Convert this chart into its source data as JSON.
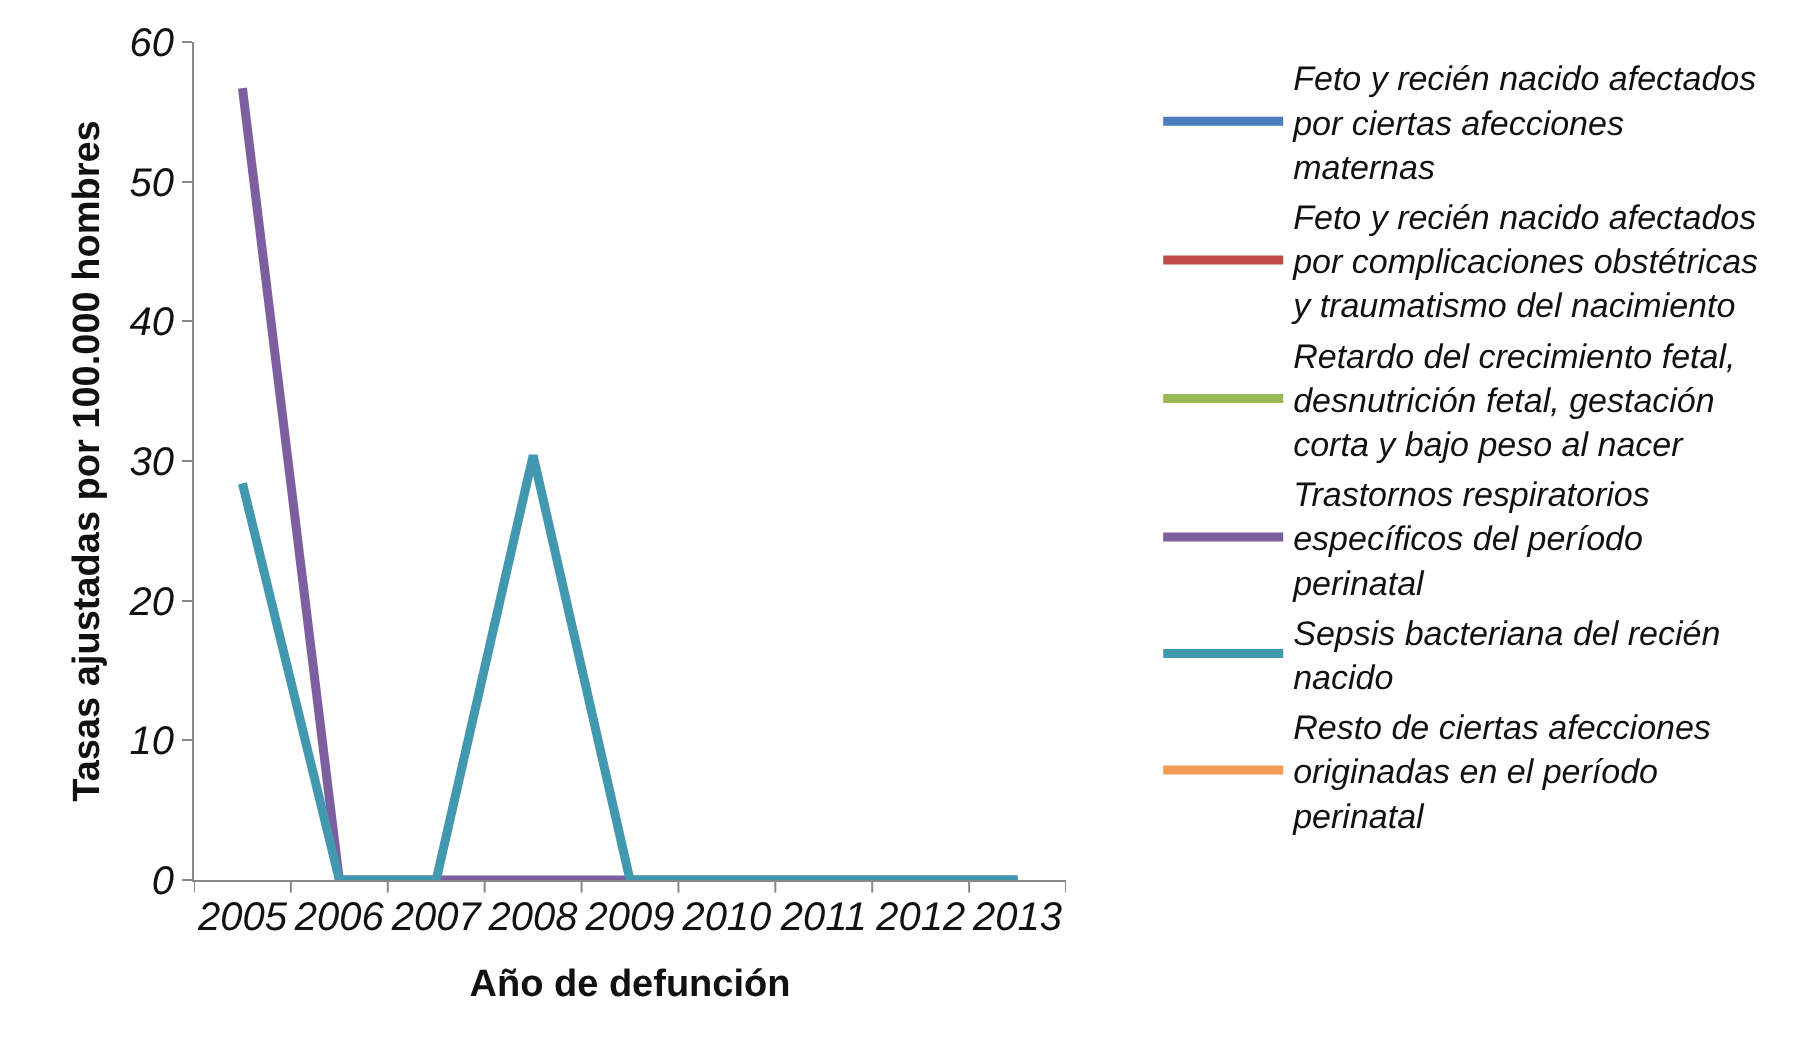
{
  "chart_data": {
    "type": "line",
    "xlabel": "Año de defunción",
    "ylabel": "Tasas ajustadas por 100.000 hombres",
    "categories": [
      "2005",
      "2006",
      "2007",
      "2008",
      "2009",
      "2010",
      "2011",
      "2012",
      "2013"
    ],
    "series": [
      {
        "name": "Feto y recién nacido afectados por ciertas afecciones maternas",
        "color": "#4a7ebb",
        "values": [
          null,
          null,
          null,
          null,
          null,
          null,
          null,
          null,
          null
        ]
      },
      {
        "name": "Feto y recién nacido afectados por complicaciones obstétricas y traumatismo del nacimiento",
        "color": "#be4b48",
        "values": [
          null,
          null,
          null,
          null,
          null,
          null,
          null,
          null,
          null
        ]
      },
      {
        "name": "Retardo del crecimiento fetal, desnutrición fetal, gestación corta y bajo peso al nacer",
        "color": "#98b954",
        "values": [
          null,
          null,
          null,
          null,
          null,
          null,
          null,
          null,
          null
        ]
      },
      {
        "name": "Trastornos respiratorios específicos del período perinatal",
        "color": "#7d5fa0",
        "values": [
          56.7,
          0,
          0,
          0,
          0,
          0,
          0,
          0,
          0
        ]
      },
      {
        "name": "Sepsis bacteriana del recién nacido",
        "color": "#4198af",
        "values": [
          28.4,
          0,
          0,
          30.4,
          0,
          0,
          0,
          0,
          0
        ]
      },
      {
        "name": "Resto de ciertas afecciones originadas en el período perinatal",
        "color": "#f59d56",
        "values": [
          null,
          null,
          null,
          null,
          null,
          null,
          null,
          null,
          null
        ]
      }
    ],
    "ylim": [
      0,
      60
    ],
    "yticks": [
      0,
      10,
      20,
      30,
      40,
      50,
      60
    ],
    "legend": "right",
    "marker": "none",
    "line_style": "solid"
  }
}
